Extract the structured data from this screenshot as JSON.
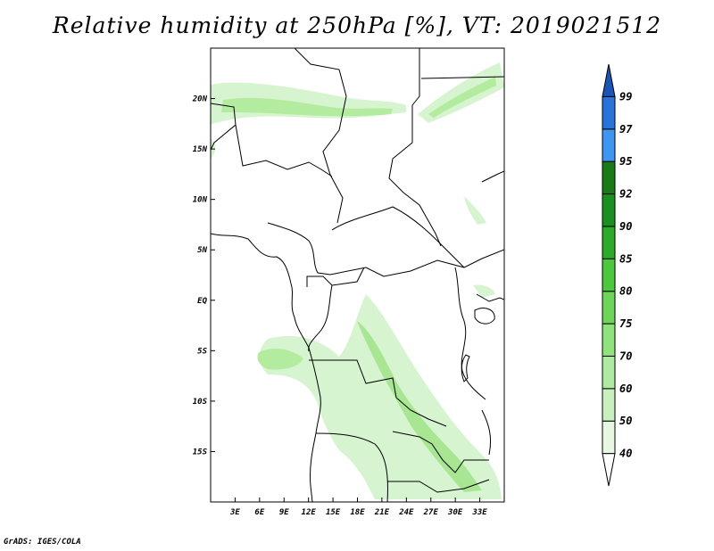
{
  "title": "Relative humidity at 250hPa [%], VT: 2019021512",
  "footer": "GrADS: IGES/COLA",
  "map": {
    "lon_range": [
      0,
      36
    ],
    "lat_range": [
      -20,
      25
    ],
    "lon_ticks": [
      "3E",
      "6E",
      "9E",
      "12E",
      "15E",
      "18E",
      "21E",
      "24E",
      "27E",
      "30E",
      "33E"
    ],
    "lon_tick_values": [
      3,
      6,
      9,
      12,
      15,
      18,
      21,
      24,
      27,
      30,
      33
    ],
    "lat_ticks": [
      "20N",
      "15N",
      "10N",
      "5N",
      "EQ",
      "5S",
      "10S",
      "15S"
    ],
    "lat_tick_values": [
      20,
      15,
      10,
      5,
      0,
      -5,
      -10,
      -15
    ]
  },
  "colorbar": {
    "levels": [
      "40",
      "50",
      "60",
      "70",
      "75",
      "80",
      "85",
      "90",
      "92",
      "95",
      "97",
      "99"
    ],
    "colors": [
      "#ffffff",
      "#e6f8e2",
      "#c8f0be",
      "#aeea9f",
      "#90e27d",
      "#6ed55b",
      "#4bc83e",
      "#2daa2a",
      "#1a9020",
      "#1a7a18",
      "#3d96f0",
      "#2a73d8",
      "#1a55b5"
    ]
  }
}
